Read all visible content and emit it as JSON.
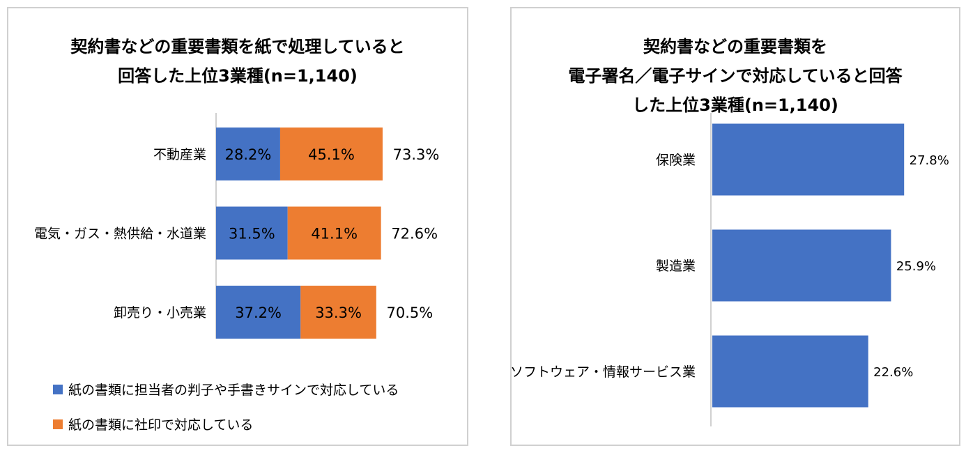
{
  "colors": {
    "blue": "#4472C4",
    "orange": "#ED7D31",
    "axis": "#d0d0d0",
    "text": "#000000"
  },
  "chart_data": [
    {
      "type": "bar",
      "orientation": "horizontal",
      "stacked": true,
      "title_lines": [
        "契約書などの重要書類を紙で処理していると",
        "回答した上位3業種(n=1,140)"
      ],
      "categories": [
        "不動産業",
        "電気・ガス・熱供給・水道業",
        "卸売り・小売業"
      ],
      "series": [
        {
          "name": "紙の書類に担当者の判子や手書きサインで対応している",
          "color": "#4472C4",
          "values": [
            28.2,
            31.5,
            37.2
          ],
          "labels": [
            "28.2%",
            "31.5%",
            "37.2%"
          ]
        },
        {
          "name": "紙の書類に社印で対応している",
          "color": "#ED7D31",
          "values": [
            45.1,
            41.1,
            33.3
          ],
          "labels": [
            "45.1%",
            "41.1%",
            "33.3%"
          ]
        }
      ],
      "totals": [
        73.3,
        72.6,
        70.5
      ],
      "total_labels": [
        "73.3%",
        "72.6%",
        "70.5%"
      ],
      "legend_position": "bottom",
      "grid": false
    },
    {
      "type": "bar",
      "orientation": "horizontal",
      "stacked": false,
      "title_lines": [
        "契約書などの重要書類を",
        "電子署名／電子サインで対応していると回答",
        "した上位3業種(n=1,140)"
      ],
      "categories": [
        "保険業",
        "製造業",
        "ソフトウェア・情報サービス業"
      ],
      "series": [
        {
          "color": "#4472C4",
          "values": [
            27.8,
            25.9,
            22.6
          ],
          "labels": [
            "27.8%",
            "25.9%",
            "22.6%"
          ]
        }
      ],
      "legend_position": "none",
      "grid": false
    }
  ]
}
